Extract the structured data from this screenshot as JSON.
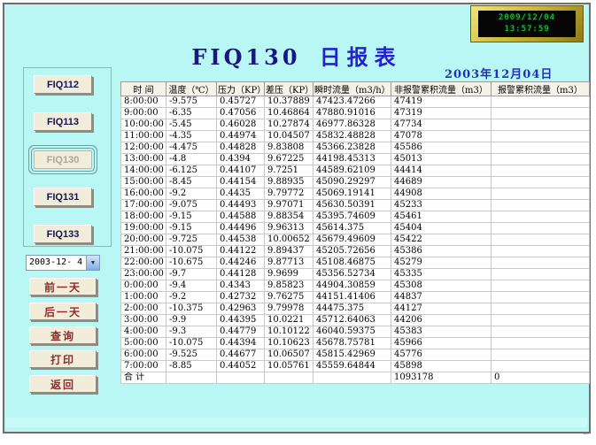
{
  "clock": {
    "date": "2009/12/04",
    "time": "13:57:59",
    "text_color": "#1cd23c"
  },
  "header": {
    "station_code": "FIQ130",
    "report_type": "日报表",
    "report_date": "2003年12月04日",
    "title_color": "#2323cd"
  },
  "sidebar": {
    "fiq_buttons": [
      {
        "label": "FIQ112",
        "selected": false
      },
      {
        "label": "FIQ113",
        "selected": false
      },
      {
        "label": "FIQ130",
        "selected": true
      },
      {
        "label": "FIQ131",
        "selected": false
      },
      {
        "label": "FIQ133",
        "selected": false
      }
    ],
    "date_select": {
      "value": "2003-12- 4",
      "arrow_icon": "▼"
    },
    "nav_buttons": [
      "前一天",
      "后一天",
      "查询",
      "打印",
      "返回"
    ],
    "nav_text_color": "#8e2a2a"
  },
  "table": {
    "headers": [
      "时 间",
      "温度（℃）",
      "压力（KP）",
      "差压（KP）",
      "瞬时流量（m3/h）",
      "非报警累积流量（m3）",
      "报警累积流量（m3）"
    ],
    "rows": [
      [
        "8:00:00",
        "-9.575",
        "0.45727",
        "10.37889",
        "47423.47266",
        "47419",
        ""
      ],
      [
        "9:00:00",
        "-6.35",
        "0.47056",
        "10.46864",
        "47880.91016",
        "47319",
        ""
      ],
      [
        "10:00:00",
        "-5.45",
        "0.46028",
        "10.27874",
        "46977.86328",
        "47734",
        ""
      ],
      [
        "11:00:00",
        "-4.35",
        "0.44974",
        "10.04507",
        "45832.48828",
        "47078",
        ""
      ],
      [
        "12:00:00",
        "-4.475",
        "0.44828",
        "9.83808",
        "45366.23828",
        "45586",
        ""
      ],
      [
        "13:00:00",
        "-4.8",
        "0.4394",
        "9.67225",
        "44198.45313",
        "45013",
        ""
      ],
      [
        "14:00:00",
        "-6.125",
        "0.44107",
        "9.7251",
        "44589.62109",
        "44414",
        ""
      ],
      [
        "15:00:00",
        "-8.45",
        "0.44154",
        "9.88935",
        "45090.29297",
        "44689",
        ""
      ],
      [
        "16:00:00",
        "-9.2",
        "0.4435",
        "9.79772",
        "45069.19141",
        "44908",
        ""
      ],
      [
        "17:00:00",
        "-9.075",
        "0.44493",
        "9.97071",
        "45630.50391",
        "45233",
        ""
      ],
      [
        "18:00:00",
        "-9.15",
        "0.44588",
        "9.88354",
        "45395.74609",
        "45461",
        ""
      ],
      [
        "19:00:00",
        "-9.15",
        "0.44496",
        "9.96313",
        "45614.375",
        "45404",
        ""
      ],
      [
        "20:00:00",
        "-9.725",
        "0.44538",
        "10.00652",
        "45679.49609",
        "45422",
        ""
      ],
      [
        "21:00:00",
        "-10.075",
        "0.44122",
        "9.89437",
        "45205.72656",
        "45386",
        ""
      ],
      [
        "22:00:00",
        "-10.675",
        "0.44246",
        "9.87713",
        "45108.46875",
        "45279",
        ""
      ],
      [
        "23:00:00",
        "-9.7",
        "0.44128",
        "9.9699",
        "45356.52734",
        "45335",
        ""
      ],
      [
        "0:00:00",
        "-9.4",
        "0.4343",
        "9.85823",
        "44904.30859",
        "45308",
        ""
      ],
      [
        "1:00:00",
        "-9.2",
        "0.42732",
        "9.76275",
        "44151.41406",
        "44837",
        ""
      ],
      [
        "2:00:00",
        "-10.375",
        "0.42963",
        "9.79978",
        "44475.375",
        "44127",
        ""
      ],
      [
        "3:00:00",
        "-9.9",
        "0.44395",
        "10.0221",
        "45712.64063",
        "44206",
        ""
      ],
      [
        "4:00:00",
        "-9.3",
        "0.44779",
        "10.10122",
        "46040.59375",
        "45383",
        ""
      ],
      [
        "5:00:00",
        "-10.075",
        "0.44394",
        "10.10623",
        "45678.75781",
        "45966",
        ""
      ],
      [
        "6:00:00",
        "-9.525",
        "0.44677",
        "10.06507",
        "45815.42969",
        "45776",
        ""
      ],
      [
        "7:00:00",
        "-8.85",
        "0.44052",
        "10.05761",
        "45559.64844",
        "45898",
        ""
      ]
    ],
    "total_row": [
      "合 计",
      "",
      "",
      "",
      "",
      "1093178",
      "0"
    ]
  },
  "icons": {
    "scroll_arrow": "←"
  },
  "colors": {
    "background": "#b9f7f5",
    "button_face": "#f2edda",
    "clock_frame": "#cdb93a"
  }
}
